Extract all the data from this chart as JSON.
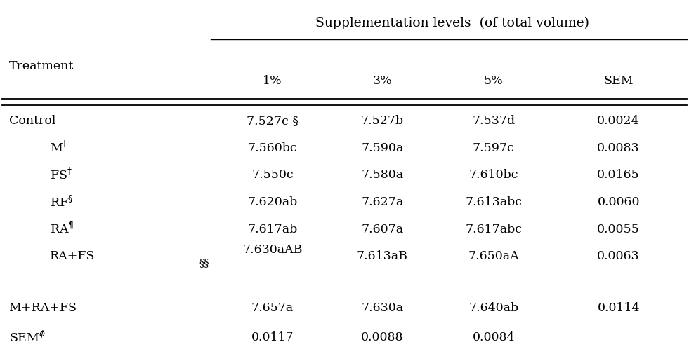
{
  "title": "Supplementation levels  (of total volume)",
  "col_headers": [
    "1%",
    "3%",
    "5%",
    "SEM"
  ],
  "col1": [
    "7.527c §",
    "7.560bc",
    "7.550c",
    "7.620ab",
    "7.617ab",
    "7.630aAB",
    "7.657a",
    "0.0117"
  ],
  "col2": [
    "7.527b",
    "7.590a",
    "7.580a",
    "7.627a",
    "7.607a",
    "7.613aB",
    "7.630a",
    "0.0088"
  ],
  "col3": [
    "7.537d",
    "7.597c",
    "7.610bc",
    "7.613abc",
    "7.617abc",
    "7.650aA",
    "7.640ab",
    "0.0084"
  ],
  "col4": [
    "0.0024",
    "0.0083",
    "0.0165",
    "0.0060",
    "0.0055",
    "0.0063",
    "0.0114",
    ""
  ],
  "col1_note": [
    "",
    "",
    "",
    "",
    "",
    "§§",
    "",
    ""
  ],
  "row_label_texts": [
    "Control",
    "M$^{\\dagger}$",
    "FS$^{\\ddagger}$",
    "RF$^{\\S}$",
    "RA$^{\\P}$",
    "RA+FS",
    "M+RA+FS",
    "SEM$^{\\phi}$"
  ],
  "indented_rows": [
    1,
    2,
    3,
    4,
    5
  ],
  "bg_color": "#ffffff",
  "text_color": "#000000",
  "font_size": 12.5,
  "header_font_size": 13.5,
  "figsize": [
    9.81,
    4.89
  ],
  "dpi": 100
}
